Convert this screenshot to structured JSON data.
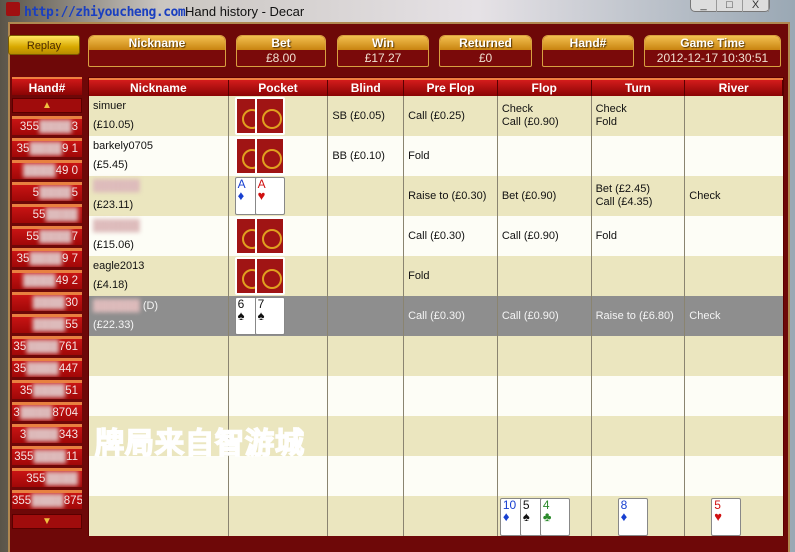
{
  "window": {
    "title": "Hand history - Decar",
    "watermark_url": "http://zhiyoucheng.com",
    "controls": [
      "_",
      "□",
      "X"
    ]
  },
  "watermark_text": "牌局来自智游城",
  "replay_label": "Replay",
  "summary": [
    {
      "label": "Nickname",
      "value": "",
      "blurred": true
    },
    {
      "label": "Bet",
      "value": "£8.00"
    },
    {
      "label": "Win",
      "value": "£17.27"
    },
    {
      "label": "Returned",
      "value": "£0"
    },
    {
      "label": "Hand#",
      "value": "",
      "blurred": true
    },
    {
      "label": "Game Time",
      "value": "2012-12-17 10:30:51"
    }
  ],
  "hand_list": {
    "header": "Hand#",
    "up_icon": "triangle-up",
    "down_icon": "triangle-down",
    "items": [
      {
        "prefix": "355",
        "suffix": "3"
      },
      {
        "prefix": "35",
        "suffix": "9  1"
      },
      {
        "prefix": "",
        "suffix": "49  0"
      },
      {
        "prefix": "5",
        "suffix": "5"
      },
      {
        "prefix": "55",
        "suffix": ""
      },
      {
        "prefix": "55",
        "suffix": "7"
      },
      {
        "prefix": "35",
        "suffix": "9  7"
      },
      {
        "prefix": "",
        "suffix": "49  2"
      },
      {
        "prefix": "",
        "suffix": "30"
      },
      {
        "prefix": "",
        "suffix": "55"
      },
      {
        "prefix": "35",
        "suffix": "761"
      },
      {
        "prefix": "35",
        "suffix": "447"
      },
      {
        "prefix": "35",
        "suffix": "51"
      },
      {
        "prefix": "3",
        "suffix": "8704"
      },
      {
        "prefix": "3",
        "suffix": "343"
      },
      {
        "prefix": "355",
        "suffix": "11"
      },
      {
        "prefix": "355",
        "suffix": ""
      },
      {
        "prefix": "355",
        "suffix": "87578"
      }
    ]
  },
  "table": {
    "columns": [
      "Nickname",
      "Pocket",
      "Blind",
      "Pre Flop",
      "Flop",
      "Turn",
      "River"
    ],
    "rows": [
      {
        "name": "simuer",
        "stack": "(£10.05)",
        "pocket": "back",
        "blind": "SB (£0.05)",
        "preflop": [
          "Call (£0.25)"
        ],
        "flop": [
          "Check",
          "Call (£0.90)"
        ],
        "turn": [
          "Check",
          "Fold"
        ],
        "river": []
      },
      {
        "name": "barkely0705",
        "stack": "(£5.45)",
        "pocket": "back",
        "blind": "BB (£0.10)",
        "preflop": [
          "Fold"
        ],
        "flop": [],
        "turn": [],
        "river": []
      },
      {
        "name": "",
        "blurred": true,
        "stack": "(£23.11)",
        "pocket": [
          {
            "rank": "A",
            "suit": "♦",
            "color": "blue"
          },
          {
            "rank": "A",
            "suit": "♥",
            "color": "red"
          }
        ],
        "blind": "",
        "preflop": [
          "Raise to (£0.30)"
        ],
        "flop": [
          "Bet (£0.90)"
        ],
        "turn": [
          "Bet (£2.45)",
          "Call (£4.35)"
        ],
        "river": [
          "Check"
        ]
      },
      {
        "name": "",
        "blurred": true,
        "stack": "(£15.06)",
        "pocket": "back",
        "blind": "",
        "preflop": [
          "Call (£0.30)"
        ],
        "flop": [
          "Call (£0.90)"
        ],
        "turn": [
          "Fold"
        ],
        "river": []
      },
      {
        "name": "eagle2013",
        "stack": "(£4.18)",
        "pocket": "back",
        "blind": "",
        "preflop": [
          "Fold"
        ],
        "flop": [],
        "turn": [],
        "river": []
      },
      {
        "name": "",
        "blurred": true,
        "dealer": "(D)",
        "selected": true,
        "stack": "(£22.33)",
        "pocket": [
          {
            "rank": "6",
            "suit": "♠",
            "color": "blk"
          },
          {
            "rank": "7",
            "suit": "♠",
            "color": "blk"
          }
        ],
        "blind": "",
        "preflop": [
          "Call (£0.30)"
        ],
        "flop": [
          "Call (£0.90)"
        ],
        "turn": [
          "Raise to (£6.80)"
        ],
        "river": [
          "Check"
        ]
      }
    ],
    "board": {
      "flop": [
        {
          "rank": "10",
          "suit": "♦",
          "color": "blue"
        },
        {
          "rank": "5",
          "suit": "♠",
          "color": "blk"
        },
        {
          "rank": "4",
          "suit": "♣",
          "color": "grn"
        }
      ],
      "turn": [
        {
          "rank": "8",
          "suit": "♦",
          "color": "blue"
        }
      ],
      "river": [
        {
          "rank": "5",
          "suit": "♥",
          "color": "red"
        }
      ]
    }
  }
}
